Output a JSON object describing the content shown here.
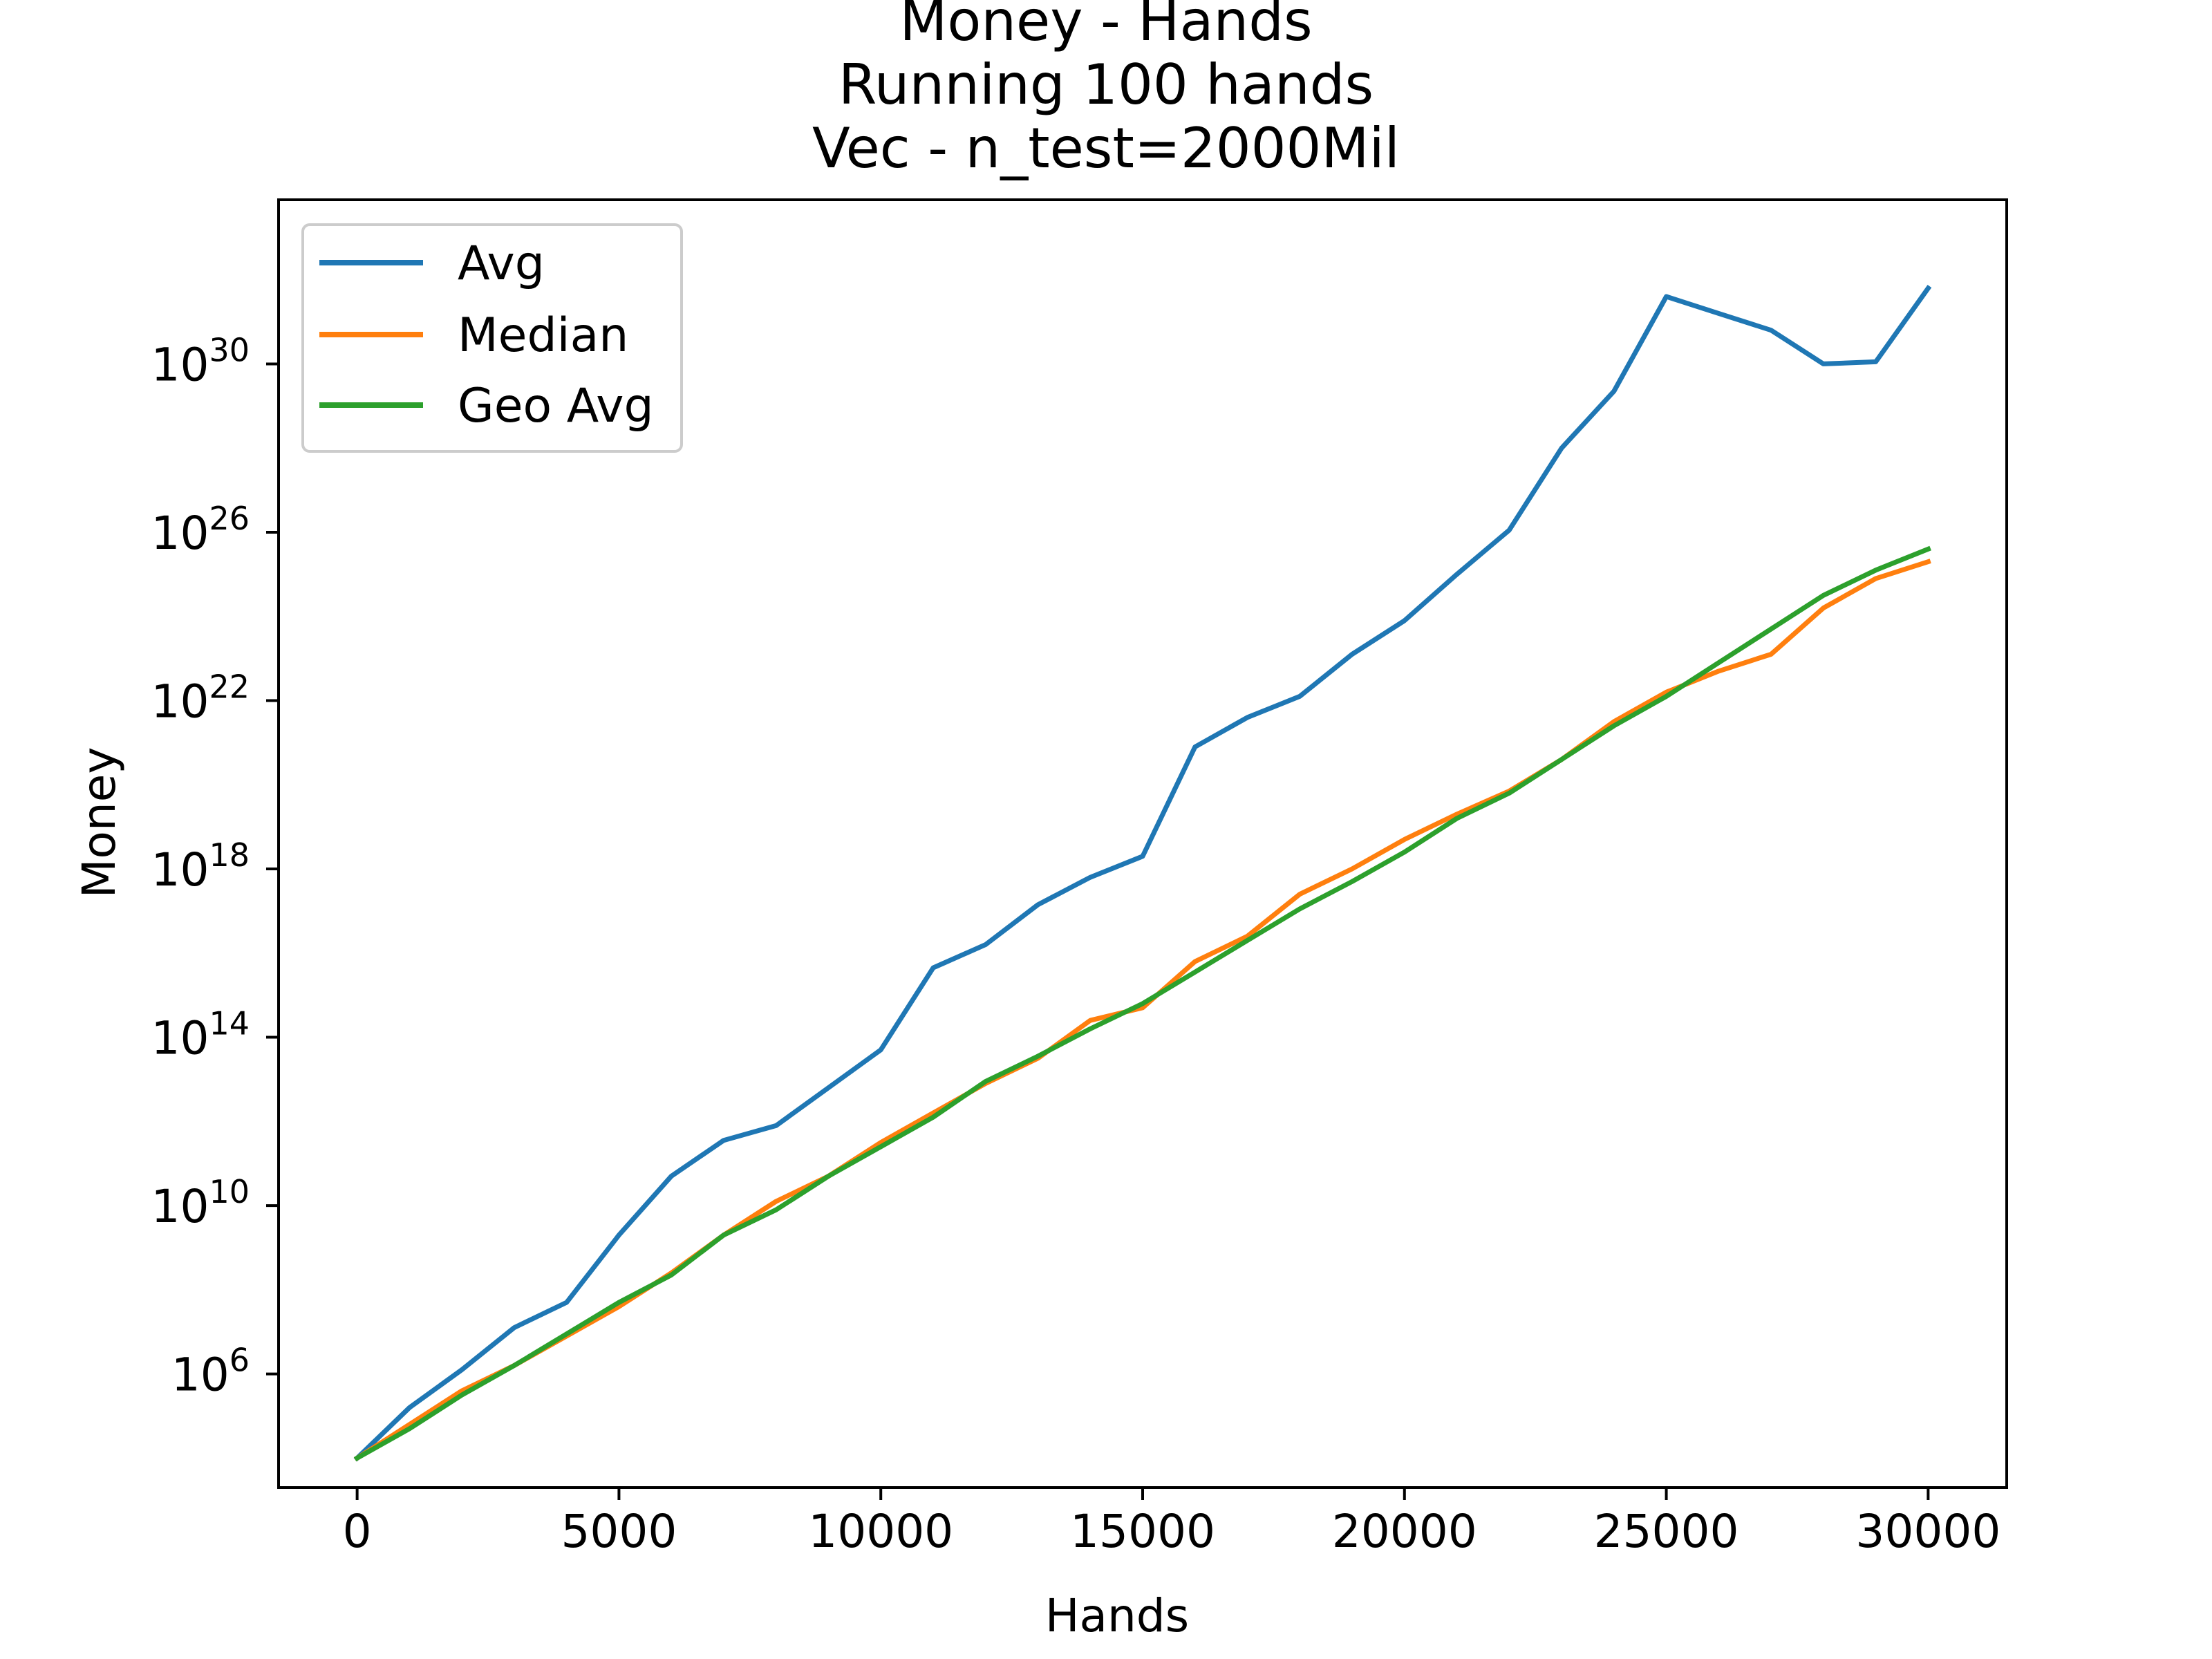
{
  "chart_data": {
    "type": "line",
    "title_lines": [
      "Money - Hands",
      "Running 100 hands",
      "Vec - n_test=2000Mil"
    ],
    "xlabel": "Hands",
    "ylabel": "Money",
    "yscale": "log",
    "xlim": [
      -1500,
      31500
    ],
    "ylim_exp": [
      3.3,
      33.9
    ],
    "x_ticks": [
      0,
      5000,
      10000,
      15000,
      20000,
      25000,
      30000
    ],
    "y_ticks_exp": [
      6,
      10,
      14,
      18,
      22,
      26,
      30
    ],
    "y_tick_base": "10",
    "grid": false,
    "legend_position": "upper left",
    "x": [
      0,
      1000,
      2000,
      3000,
      4000,
      5000,
      6000,
      7000,
      8000,
      9000,
      10000,
      11000,
      12000,
      13000,
      14000,
      15000,
      16000,
      17000,
      18000,
      19000,
      20000,
      21000,
      22000,
      23000,
      24000,
      25000,
      26000,
      27000,
      28000,
      29000,
      30000
    ],
    "series": [
      {
        "name": "Avg",
        "color": "#1f77b4",
        "log10_values": [
          4.0,
          5.2,
          6.1,
          7.1,
          7.7,
          9.3,
          10.7,
          11.55,
          11.9,
          12.8,
          13.7,
          15.65,
          16.2,
          17.15,
          17.8,
          18.3,
          20.9,
          21.6,
          22.1,
          23.1,
          23.9,
          25.0,
          26.05,
          28.0,
          29.35,
          31.6,
          31.2,
          30.8,
          30.0,
          30.05,
          31.8
        ]
      },
      {
        "name": "Median",
        "color": "#ff7f0e",
        "log10_values": [
          4.0,
          4.8,
          5.6,
          6.2,
          6.9,
          7.6,
          8.4,
          9.3,
          10.1,
          10.7,
          11.5,
          12.2,
          12.9,
          13.5,
          14.4,
          14.7,
          15.8,
          16.4,
          17.4,
          18.0,
          18.7,
          19.3,
          19.85,
          20.6,
          21.5,
          22.2,
          22.7,
          23.1,
          24.2,
          24.9,
          25.3
        ]
      },
      {
        "name": "Geo Avg",
        "color": "#2ca02c",
        "log10_values": [
          4.0,
          4.7,
          5.5,
          6.2,
          6.95,
          7.7,
          8.35,
          9.3,
          9.9,
          10.7,
          11.4,
          12.1,
          12.95,
          13.55,
          14.2,
          14.8,
          15.55,
          16.3,
          17.05,
          17.7,
          18.4,
          19.2,
          19.8,
          20.6,
          21.4,
          22.1,
          22.9,
          23.7,
          24.5,
          25.1,
          25.6
        ]
      }
    ]
  }
}
